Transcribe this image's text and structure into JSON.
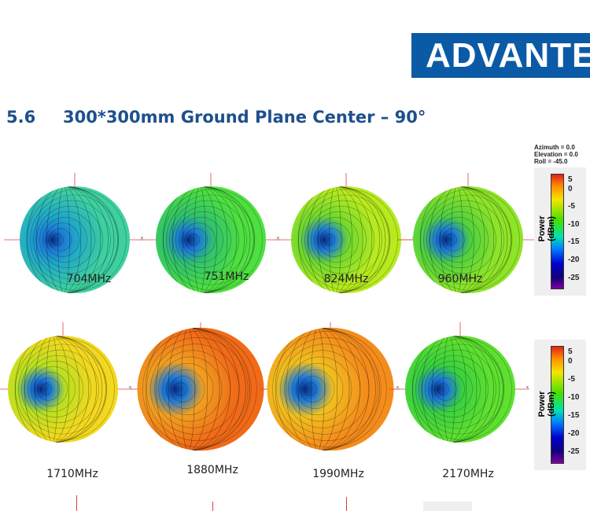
{
  "logo": "ADVANTECH",
  "heading": {
    "number": "5.6",
    "title": "300*300mm Ground Plane Center – 90°"
  },
  "view": {
    "azimuth": "Azimuth = 0.0",
    "elevation": "Elevation = 0.0",
    "roll": "Roll = -45.0"
  },
  "colorbar": {
    "label": "Power (dBm)",
    "ticks": [
      "5",
      "0",
      "-5",
      "-10",
      "-15",
      "-20",
      "-25"
    ]
  },
  "patterns": [
    {
      "label": "704MHz",
      "color": "#3fd0a0",
      "edge": "#20a8c8"
    },
    {
      "label": "751MHz",
      "color": "#4ee040",
      "edge": "#30c070"
    },
    {
      "label": "824MHz",
      "color": "#b8ea20",
      "edge": "#70d830"
    },
    {
      "label": "960MHz",
      "color": "#8ee428",
      "edge": "#50d040"
    },
    {
      "label": "1710MHz",
      "color": "#f2d820",
      "edge": "#b8e020"
    },
    {
      "label": "1880MHz",
      "color": "#f06a18",
      "edge": "#f0a020"
    },
    {
      "label": "1990MHz",
      "color": "#f48c1c",
      "edge": "#f0c020"
    },
    {
      "label": "2170MHz",
      "color": "#5ee030",
      "edge": "#3ad040"
    }
  ]
}
